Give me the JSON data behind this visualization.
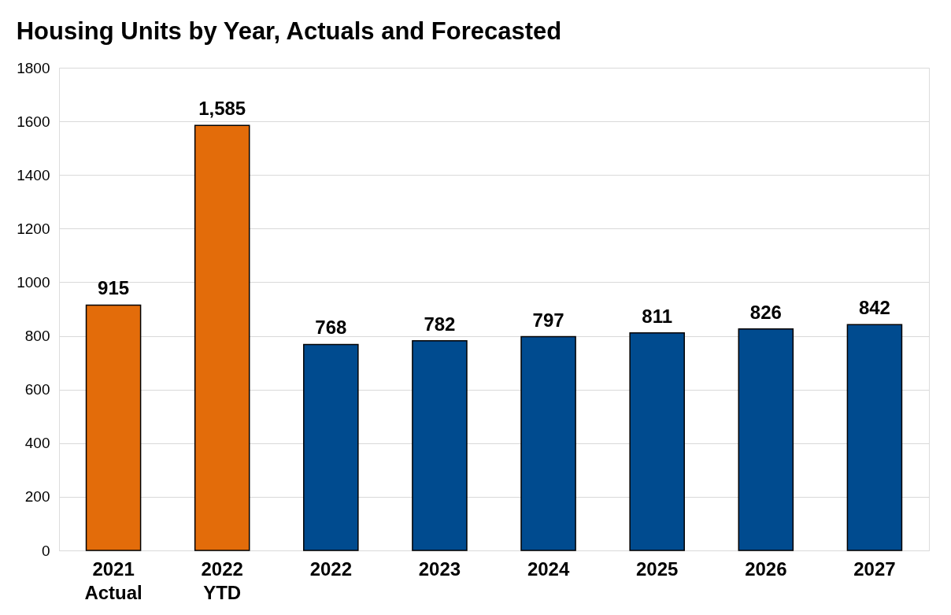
{
  "chart_data": {
    "type": "bar",
    "title": "Housing Units by Year, Actuals and Forecasted",
    "categories": [
      "2021\nActual",
      "2022\nYTD",
      "2022",
      "2023",
      "2024",
      "2025",
      "2026",
      "2027"
    ],
    "values": [
      915,
      1585,
      768,
      782,
      797,
      811,
      826,
      842
    ],
    "colors": [
      "#e36c0a",
      "#e36c0a",
      "#004b8f",
      "#004b8f",
      "#004b8f",
      "#004b8f",
      "#004b8f",
      "#004b8f"
    ],
    "value_labels": [
      "915",
      "1,585",
      "768",
      "782",
      "797",
      "811",
      "826",
      "842"
    ],
    "ylim": [
      0,
      1800
    ],
    "yticks": [
      0,
      200,
      400,
      600,
      800,
      1000,
      1200,
      1400,
      1600,
      1800
    ],
    "grid": "y"
  }
}
